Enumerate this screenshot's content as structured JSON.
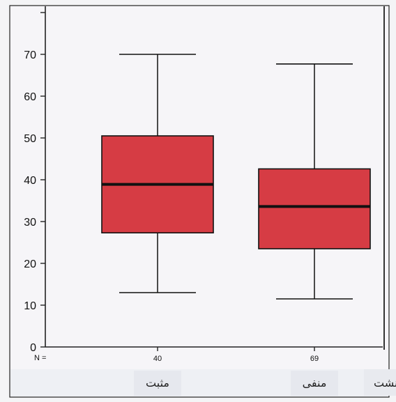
{
  "chart_data": {
    "type": "boxplot",
    "y_ticks": [
      0,
      10,
      20,
      30,
      40,
      50,
      60,
      70
    ],
    "ylim": [
      0,
      80
    ],
    "n_label": "N =",
    "categories": [
      {
        "label": "مثبت",
        "n": "40",
        "whisker_low": 13,
        "q1": 27.3,
        "median": 38.9,
        "q3": 50.5,
        "whisker_high": 70
      },
      {
        "label": "منفی",
        "n": "69",
        "whisker_low": 11.5,
        "q1": 23.5,
        "median": 33.6,
        "q3": 42.6,
        "whisker_high": 67.7
      }
    ],
    "extra_label": "نشت",
    "box_color": "#d63c44",
    "grid": false
  }
}
